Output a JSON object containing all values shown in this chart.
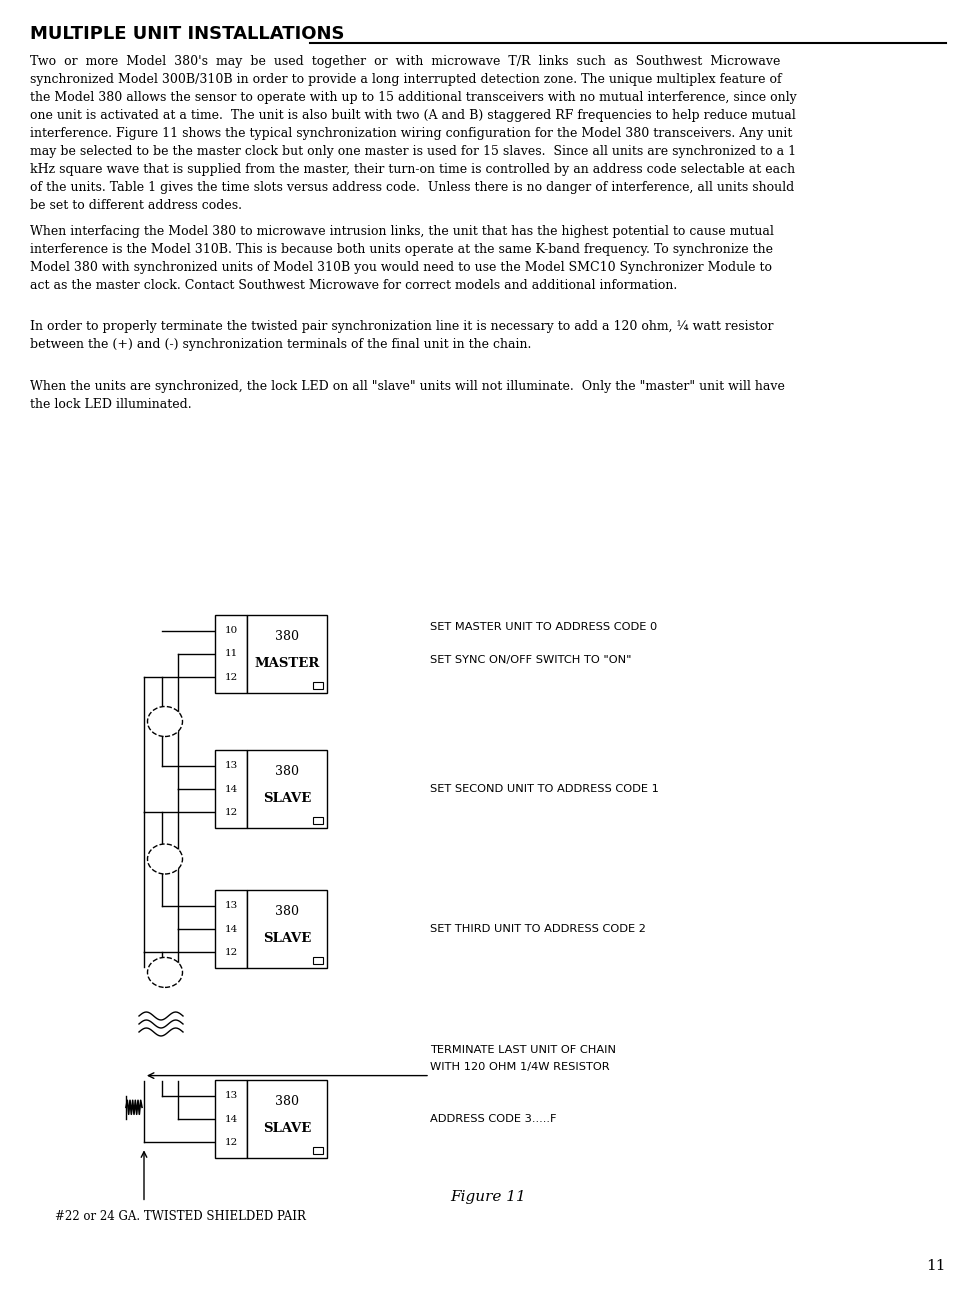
{
  "title": "MULTIPLE UNIT INSTALLATIONS",
  "page_number": "11",
  "background_color": "#ffffff",
  "text_color": "#000000",
  "para1": "Two  or  more  Model  380's  may  be  used  together  or  with  microwave  T/R  links  such  as  Southwest  Microwave\nsynchronized Model 300B/310B in order to provide a long interrupted detection zone. The unique multiplex feature of\nthe Model 380 allows the sensor to operate with up to 15 additional transceivers with no mutual interference, since only\none unit is activated at a time.  The unit is also built with two (A and B) staggered RF frequencies to help reduce mutual\ninterference. Figure 11 shows the typical synchronization wiring configuration for the Model 380 transceivers. Any unit\nmay be selected to be the master clock but only one master is used for 15 slaves.  Since all units are synchronized to a 1\nkHz square wave that is supplied from the master, their turn-on time is controlled by an address code selectable at each\nof the units. Table 1 gives the time slots versus address code.  Unless there is no danger of interference, all units should\nbe set to different address codes.",
  "para2": "When interfacing the Model 380 to microwave intrusion links, the unit that has the highest potential to cause mutual\ninterference is the Model 310B. This is because both units operate at the same K-band frequency. To synchronize the\nModel 380 with synchronized units of Model 310B you would need to use the Model SMC10 Synchronizer Module to\nact as the master clock. Contact Southwest Microwave for correct models and additional information.",
  "para3": "In order to properly terminate the twisted pair synchronization line it is necessary to add a 120 ohm, ¼ watt resistor\nbetween the (+) and (-) synchronization terminals of the final unit in the chain.",
  "para4": "When the units are synchronized, the lock LED on all \"slave\" units will not illuminate.  Only the \"master\" unit will have\nthe lock LED illuminated.",
  "figure_caption": "Figure 11",
  "twisted_pair_label": "#22 or 24 GA. TWISTED SHIELDED PAIR",
  "units": [
    {
      "pins": [
        "10",
        "11",
        "12"
      ],
      "model": "380",
      "label": "MASTER"
    },
    {
      "pins": [
        "13",
        "14",
        "12"
      ],
      "model": "380",
      "label": "SLAVE"
    },
    {
      "pins": [
        "13",
        "14",
        "12"
      ],
      "model": "380",
      "label": "SLAVE"
    },
    {
      "pins": [
        "13",
        "14",
        "12"
      ],
      "model": "380",
      "label": "SLAVE"
    }
  ],
  "ann1": "SET MASTER UNIT TO ADDRESS CODE 0",
  "ann2": "SET SYNC ON/OFF SWITCH TO \"ON\"",
  "ann3": "SET SECOND UNIT TO ADDRESS CODE 1",
  "ann4": "SET THIRD UNIT TO ADDRESS CODE 2",
  "ann5a": "TERMINATE LAST UNIT OF CHAIN",
  "ann5b": "WITH 120 OHM 1/4W RESISTOR",
  "ann6": "ADDRESS CODE 3.....F"
}
